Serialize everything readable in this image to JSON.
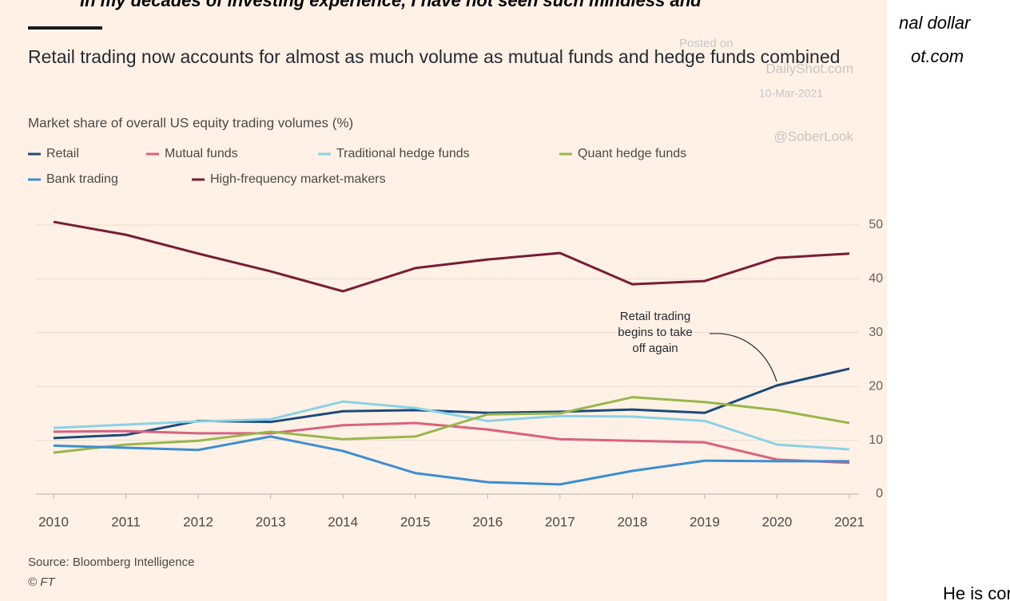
{
  "page": {
    "header_text": "In my decades of investing experience, I have not seen such mindless and",
    "side_text_1": "nal dollar",
    "side_text_2": "ot.com",
    "footer_text": "He is cor"
  },
  "chart_data": {
    "type": "line",
    "title": "Retail trading now accounts for almost as much volume as mutual funds and hedge funds combined",
    "subtitle": "Market share of overall US equity trading volumes (%)",
    "categories": [
      "2010",
      "2011",
      "2012",
      "2013",
      "2014",
      "2015",
      "2016",
      "2017",
      "2018",
      "2019",
      "2020",
      "2021"
    ],
    "series": [
      {
        "name": "Retail",
        "color": "#1d4a7c",
        "values": [
          10.4,
          11,
          13.6,
          13.4,
          15.4,
          15.6,
          15.1,
          15.3,
          15.7,
          15.1,
          20.2,
          23.3
        ]
      },
      {
        "name": "Mutual funds",
        "color": "#d9627f",
        "values": [
          11.6,
          11.7,
          11.3,
          11.3,
          12.8,
          13.2,
          12,
          10.2,
          9.9,
          9.6,
          6.4,
          5.8
        ]
      },
      {
        "name": "Traditional hedge funds",
        "color": "#8ad2e6",
        "values": [
          12.3,
          12.9,
          13.5,
          13.9,
          17.2,
          16,
          13.6,
          14.5,
          14.4,
          13.6,
          9.2,
          8.3
        ]
      },
      {
        "name": "Quant hedge funds",
        "color": "#98b74c",
        "values": [
          7.7,
          9.2,
          9.9,
          11.6,
          10.2,
          10.7,
          14.8,
          15,
          18,
          17.1,
          15.6,
          13.2
        ]
      },
      {
        "name": "Bank trading",
        "color": "#3d8ed2",
        "values": [
          9,
          8.6,
          8.2,
          10.7,
          8,
          3.9,
          2.2,
          1.8,
          4.3,
          6.2,
          6.1,
          6.1
        ]
      },
      {
        "name": "High-frequency market-makers",
        "color": "#7a1b35",
        "values": [
          50.6,
          48.2,
          44.7,
          41.4,
          37.7,
          42,
          43.6,
          44.8,
          39,
          39.6,
          43.9,
          44.7
        ]
      }
    ],
    "ylim": [
      0,
      50
    ],
    "yticks": [
      0,
      10,
      20,
      30,
      40,
      50
    ],
    "grid": true,
    "annotation": "Retail trading begins to take off again",
    "source": "Source: Bloomberg Intelligence",
    "credit": "© FT",
    "watermark": [
      "Posted on",
      "DailyShot.com",
      "10-Mar-2021",
      "@SoberLook"
    ]
  }
}
